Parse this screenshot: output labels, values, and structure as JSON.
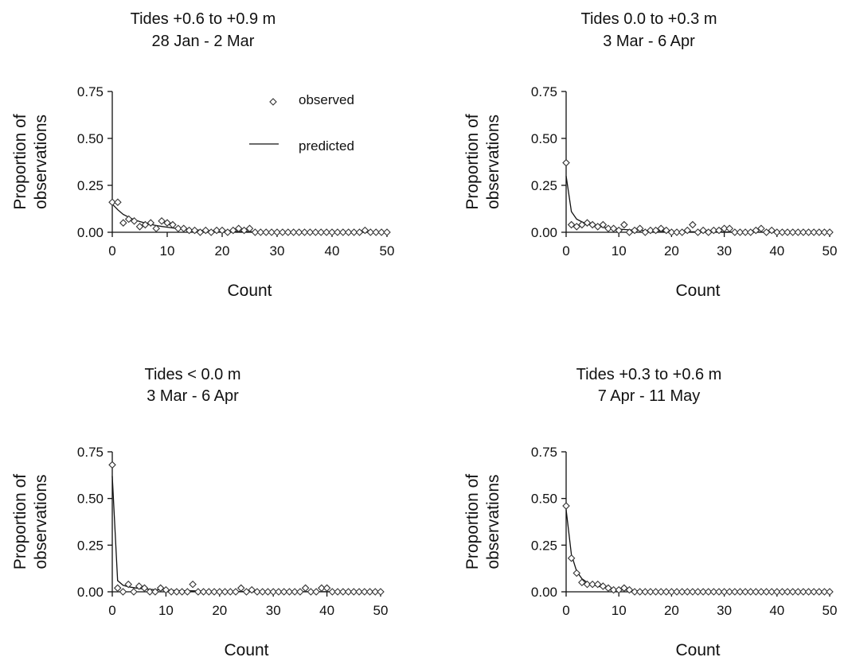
{
  "legend": {
    "observed": "observed",
    "predicted": "predicted"
  },
  "chart_data": [
    {
      "type": "scatter",
      "title": "Tides +0.6 to +0.9 m",
      "subtitle": "28 Jan - 2 Mar",
      "xlabel": "Count",
      "ylabel": [
        "Proportion of",
        "observations"
      ],
      "xlim": [
        0,
        50
      ],
      "ylim": [
        0,
        0.75
      ],
      "xticks": [
        0,
        10,
        20,
        30,
        40,
        50
      ],
      "yticks": [
        "0.00",
        "0.25",
        "0.50",
        "0.75"
      ],
      "observed": [
        0.16,
        0.16,
        0.05,
        0.07,
        0.06,
        0.03,
        0.04,
        0.05,
        0.02,
        0.06,
        0.05,
        0.04,
        0.02,
        0.02,
        0.01,
        0.01,
        0.0,
        0.01,
        0.0,
        0.01,
        0.01,
        0.0,
        0.01,
        0.02,
        0.01,
        0.02,
        0.0,
        0.0,
        0.0,
        0.0,
        0.0,
        0.0,
        0.0,
        0.0,
        0.0,
        0.0,
        0.0,
        0.0,
        0.0,
        0.0,
        0.0,
        0.0,
        0.0,
        0.0,
        0.0,
        0.0,
        0.01,
        0.0,
        0.0,
        0.0,
        0.0
      ],
      "predicted": [
        0.15,
        0.12,
        0.095,
        0.08,
        0.067,
        0.057,
        0.049,
        0.042,
        0.036,
        0.031,
        0.027,
        0.023,
        0.02,
        0.017,
        0.015,
        0.013,
        0.011,
        0.0095,
        0.008,
        0.007,
        0.006,
        0.005,
        0.0045,
        0.004,
        0.0035,
        0.003,
        0.0026,
        0.0022,
        0.0019,
        0.0016,
        0.0014,
        0.0012,
        0.001,
        0.0009,
        0.0008,
        0.0007,
        0.0006,
        0.0005,
        0.0004,
        0.0004,
        0.0003,
        0.0003,
        0.0002,
        0.0002,
        0.0002,
        0.0001,
        0.0001,
        0.0001,
        0.0001,
        0.0001,
        0.0
      ]
    },
    {
      "type": "scatter",
      "title": "Tides 0.0 to +0.3 m",
      "subtitle": "3 Mar - 6 Apr",
      "xlabel": "Count",
      "ylabel": [
        "Proportion of",
        "observations"
      ],
      "xlim": [
        0,
        50
      ],
      "ylim": [
        0,
        0.75
      ],
      "xticks": [
        0,
        10,
        20,
        30,
        40,
        50
      ],
      "yticks": [
        "0.00",
        "0.25",
        "0.50",
        "0.75"
      ],
      "observed": [
        0.37,
        0.04,
        0.03,
        0.04,
        0.05,
        0.04,
        0.03,
        0.04,
        0.02,
        0.02,
        0.01,
        0.04,
        0.0,
        0.01,
        0.02,
        0.0,
        0.01,
        0.01,
        0.02,
        0.01,
        0.0,
        0.0,
        0.0,
        0.01,
        0.04,
        0.0,
        0.01,
        0.0,
        0.01,
        0.01,
        0.02,
        0.02,
        0.0,
        0.0,
        0.0,
        0.0,
        0.01,
        0.02,
        0.0,
        0.01,
        0.0,
        0.0,
        0.0,
        0.0,
        0.0,
        0.0,
        0.0,
        0.0,
        0.0,
        0.0,
        0.0
      ],
      "predicted": [
        0.3,
        0.11,
        0.07,
        0.055,
        0.045,
        0.038,
        0.032,
        0.027,
        0.023,
        0.02,
        0.017,
        0.015,
        0.013,
        0.011,
        0.01,
        0.009,
        0.008,
        0.007,
        0.006,
        0.005,
        0.0045,
        0.004,
        0.0035,
        0.003,
        0.0027,
        0.0024,
        0.0021,
        0.0018,
        0.0016,
        0.0014,
        0.0012,
        0.0011,
        0.001,
        0.0009,
        0.0008,
        0.0007,
        0.0006,
        0.0005,
        0.0005,
        0.0004,
        0.0004,
        0.0003,
        0.0003,
        0.0003,
        0.0002,
        0.0002,
        0.0002,
        0.0002,
        0.0001,
        0.0001,
        0.0001
      ]
    },
    {
      "type": "scatter",
      "title": "Tides < 0.0 m",
      "subtitle": "3 Mar - 6 Apr",
      "xlabel": "Count",
      "ylabel": [
        "Proportion of",
        "observations"
      ],
      "xlim": [
        0,
        50
      ],
      "ylim": [
        0,
        0.75
      ],
      "xticks": [
        0,
        10,
        20,
        30,
        40,
        50
      ],
      "yticks": [
        "0.00",
        "0.25",
        "0.50",
        "0.75"
      ],
      "observed": [
        0.68,
        0.02,
        0.0,
        0.04,
        0.0,
        0.03,
        0.02,
        0.0,
        0.0,
        0.02,
        0.01,
        0.0,
        0.0,
        0.0,
        0.0,
        0.04,
        0.0,
        0.0,
        0.0,
        0.0,
        0.0,
        0.0,
        0.0,
        0.0,
        0.02,
        0.0,
        0.01,
        0.0,
        0.0,
        0.0,
        0.0,
        0.0,
        0.0,
        0.0,
        0.0,
        0.0,
        0.02,
        0.0,
        0.0,
        0.02,
        0.02,
        0.0,
        0.0,
        0.0,
        0.0,
        0.0,
        0.0,
        0.0,
        0.0,
        0.0,
        0.0
      ],
      "predicted": [
        0.62,
        0.06,
        0.035,
        0.027,
        0.022,
        0.018,
        0.015,
        0.013,
        0.011,
        0.01,
        0.009,
        0.008,
        0.007,
        0.006,
        0.0055,
        0.005,
        0.0045,
        0.004,
        0.0036,
        0.0032,
        0.0029,
        0.0026,
        0.0023,
        0.0021,
        0.0019,
        0.0017,
        0.0015,
        0.0014,
        0.0013,
        0.0012,
        0.0011,
        0.001,
        0.0009,
        0.0008,
        0.0007,
        0.0007,
        0.0006,
        0.0006,
        0.0005,
        0.0005,
        0.0004,
        0.0004,
        0.0004,
        0.0003,
        0.0003,
        0.0003,
        0.0003,
        0.0002,
        0.0002,
        0.0002,
        0.0002
      ]
    },
    {
      "type": "scatter",
      "title": "Tides +0.3 to +0.6 m",
      "subtitle": "7 Apr - 11 May",
      "xlabel": "Count",
      "ylabel": [
        "Proportion of",
        "observations"
      ],
      "xlim": [
        0,
        50
      ],
      "ylim": [
        0,
        0.75
      ],
      "xticks": [
        0,
        10,
        20,
        30,
        40,
        50
      ],
      "yticks": [
        "0.00",
        "0.25",
        "0.50",
        "0.75"
      ],
      "observed": [
        0.46,
        0.18,
        0.1,
        0.05,
        0.04,
        0.04,
        0.04,
        0.03,
        0.02,
        0.01,
        0.01,
        0.02,
        0.01,
        0.0,
        0.0,
        0.0,
        0.0,
        0.0,
        0.0,
        0.0,
        0.0,
        0.0,
        0.0,
        0.0,
        0.0,
        0.0,
        0.0,
        0.0,
        0.0,
        0.0,
        0.0,
        0.0,
        0.0,
        0.0,
        0.0,
        0.0,
        0.0,
        0.0,
        0.0,
        0.0,
        0.0,
        0.0,
        0.0,
        0.0,
        0.0,
        0.0,
        0.0,
        0.0,
        0.0,
        0.0,
        0.0
      ],
      "predicted": [
        0.44,
        0.2,
        0.11,
        0.07,
        0.05,
        0.038,
        0.03,
        0.024,
        0.019,
        0.015,
        0.012,
        0.01,
        0.008,
        0.006,
        0.005,
        0.004,
        0.003,
        0.0025,
        0.002,
        0.0016,
        0.0013,
        0.001,
        0.0008,
        0.0006,
        0.0005,
        0.0004,
        0.0003,
        0.0002,
        0.0002,
        0.0001,
        0.0001,
        0.0001,
        0.0001,
        0.0,
        0.0,
        0.0,
        0.0,
        0.0,
        0.0,
        0.0,
        0.0,
        0.0,
        0.0,
        0.0,
        0.0,
        0.0,
        0.0,
        0.0,
        0.0,
        0.0,
        0.0
      ]
    }
  ]
}
